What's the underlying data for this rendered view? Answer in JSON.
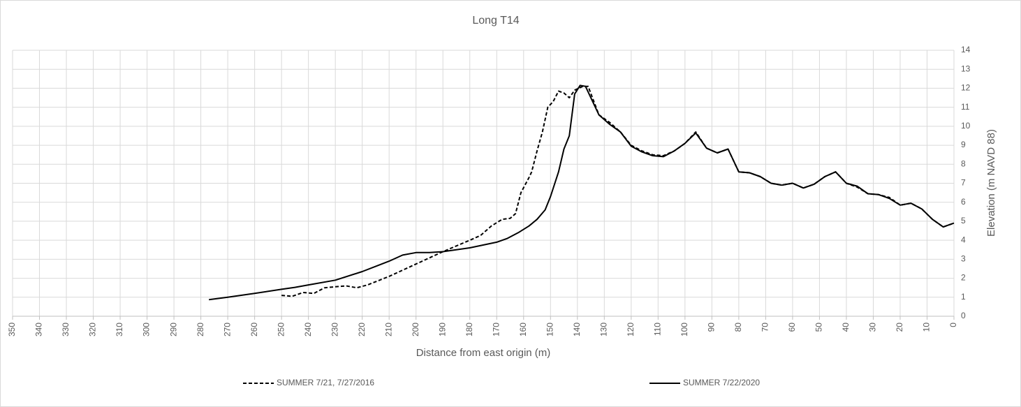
{
  "chart_data": {
    "type": "line",
    "title": "Long T14",
    "x_label": "Distance from east origin (m)",
    "y_label": "Elevation (m NAVD 88)",
    "xlim": [
      350,
      0
    ],
    "ylim": [
      0,
      14
    ],
    "xticks": [
      350,
      340,
      330,
      320,
      310,
      300,
      290,
      280,
      270,
      260,
      250,
      240,
      230,
      220,
      210,
      200,
      190,
      180,
      170,
      160,
      150,
      140,
      130,
      120,
      110,
      100,
      90,
      80,
      70,
      60,
      50,
      40,
      30,
      20,
      10,
      0
    ],
    "yticks": [
      0,
      1,
      2,
      3,
      4,
      5,
      6,
      7,
      8,
      9,
      10,
      11,
      12,
      13,
      14
    ],
    "y_axis_side": "right",
    "grid": true,
    "legend": "bottom",
    "series": [
      {
        "name": "SUMMER 7/21, 7/27/2016",
        "color": "#000000",
        "dashed": true,
        "x": [
          250,
          246,
          242,
          238,
          234,
          230,
          226,
          222,
          218,
          210,
          200,
          190,
          180,
          176,
          172,
          168,
          165,
          163,
          161,
          158,
          157,
          155,
          153,
          151,
          149,
          147,
          145,
          143,
          141,
          138,
          136,
          132,
          128,
          124,
          120,
          116,
          112,
          108,
          104,
          100,
          96,
          92,
          88,
          84,
          80,
          76,
          72,
          68,
          64,
          60,
          56,
          52,
          48,
          44,
          40,
          36,
          32,
          28,
          24,
          20,
          16,
          12,
          8,
          4,
          0
        ],
        "values": [
          1.1,
          1.05,
          1.25,
          1.2,
          1.5,
          1.55,
          1.6,
          1.5,
          1.65,
          2.1,
          2.75,
          3.4,
          4.0,
          4.25,
          4.75,
          5.1,
          5.15,
          5.4,
          6.5,
          7.3,
          7.6,
          8.7,
          9.7,
          11.0,
          11.3,
          11.85,
          11.75,
          11.5,
          11.9,
          12.1,
          12.1,
          10.6,
          10.2,
          9.7,
          9.0,
          8.7,
          8.5,
          8.45,
          8.7,
          9.1,
          9.7,
          8.85,
          8.6,
          8.8,
          7.6,
          7.55,
          7.35,
          7.0,
          6.9,
          7.0,
          6.75,
          6.95,
          7.35,
          7.6,
          7.0,
          6.8,
          6.45,
          6.4,
          6.25,
          5.85,
          5.95,
          5.65,
          5.1,
          4.7,
          4.9
        ]
      },
      {
        "name": "SUMMER 7/22/2020",
        "color": "#000000",
        "dashed": false,
        "x": [
          277,
          270,
          260,
          250,
          245,
          240,
          230,
          220,
          210,
          205,
          200,
          195,
          190,
          180,
          170,
          166,
          162,
          158,
          155,
          152,
          150,
          147,
          145,
          143,
          141,
          139,
          137,
          132,
          128,
          124,
          120,
          116,
          112,
          108,
          104,
          100,
          96,
          92,
          88,
          84,
          80,
          76,
          72,
          68,
          64,
          60,
          56,
          52,
          48,
          44,
          40,
          36,
          32,
          28,
          24,
          20,
          16,
          12,
          8,
          4,
          0
        ],
        "values": [
          0.87,
          1.0,
          1.2,
          1.42,
          1.52,
          1.65,
          1.9,
          2.35,
          2.9,
          3.22,
          3.35,
          3.35,
          3.4,
          3.6,
          3.9,
          4.1,
          4.4,
          4.75,
          5.1,
          5.6,
          6.3,
          7.6,
          8.8,
          9.5,
          11.7,
          12.15,
          12.1,
          10.6,
          10.1,
          9.7,
          8.95,
          8.65,
          8.45,
          8.4,
          8.7,
          9.1,
          9.65,
          8.85,
          8.6,
          8.8,
          7.6,
          7.55,
          7.35,
          7.0,
          6.9,
          7.0,
          6.75,
          6.95,
          7.35,
          7.6,
          7.0,
          6.85,
          6.45,
          6.4,
          6.2,
          5.85,
          5.95,
          5.65,
          5.1,
          4.7,
          4.9
        ]
      }
    ]
  }
}
